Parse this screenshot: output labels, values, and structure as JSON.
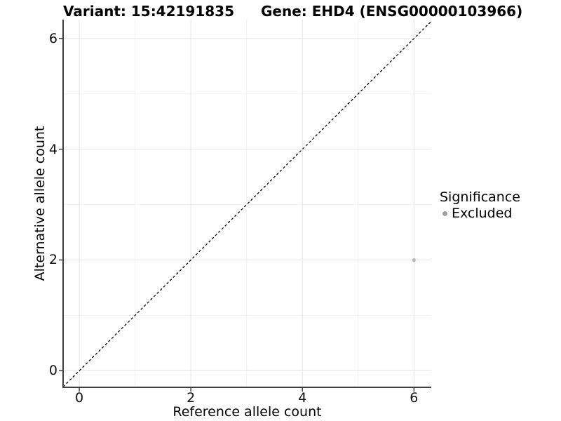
{
  "chart_data": {
    "type": "scatter",
    "titles": {
      "left": "Variant: 15:42191835",
      "right": "Gene: EHD4 (ENSG00000103966)"
    },
    "xlabel": "Reference allele count",
    "ylabel": "Alternative allele count",
    "xlim": [
      -0.29,
      6.31
    ],
    "ylim": [
      -0.3,
      6.34
    ],
    "x_ticks": [
      0,
      2,
      4,
      6
    ],
    "y_ticks": [
      0,
      2,
      4,
      6
    ],
    "x_minor_gridlines": [
      1,
      3,
      5
    ],
    "y_minor_gridlines": [
      1,
      3,
      5
    ],
    "grid": true,
    "identity_line": {
      "style": "dashed",
      "color": "#000000",
      "from": "bottom-left",
      "to": "top-right"
    },
    "series": [
      {
        "name": "Excluded",
        "color": "#b5b5b5",
        "points": [
          {
            "x": 6,
            "y": 2
          }
        ]
      }
    ],
    "legend": {
      "position": "right",
      "title": "Significance",
      "entries": [
        {
          "label": "Excluded",
          "marker": "dot",
          "color": "#9f9f9f"
        }
      ]
    },
    "colors": {
      "grid_major": "#e4e4e4",
      "grid_minor": "#f1f1f1",
      "axis_line": "#3f3f3f",
      "panel_background": "#ffffff"
    }
  }
}
